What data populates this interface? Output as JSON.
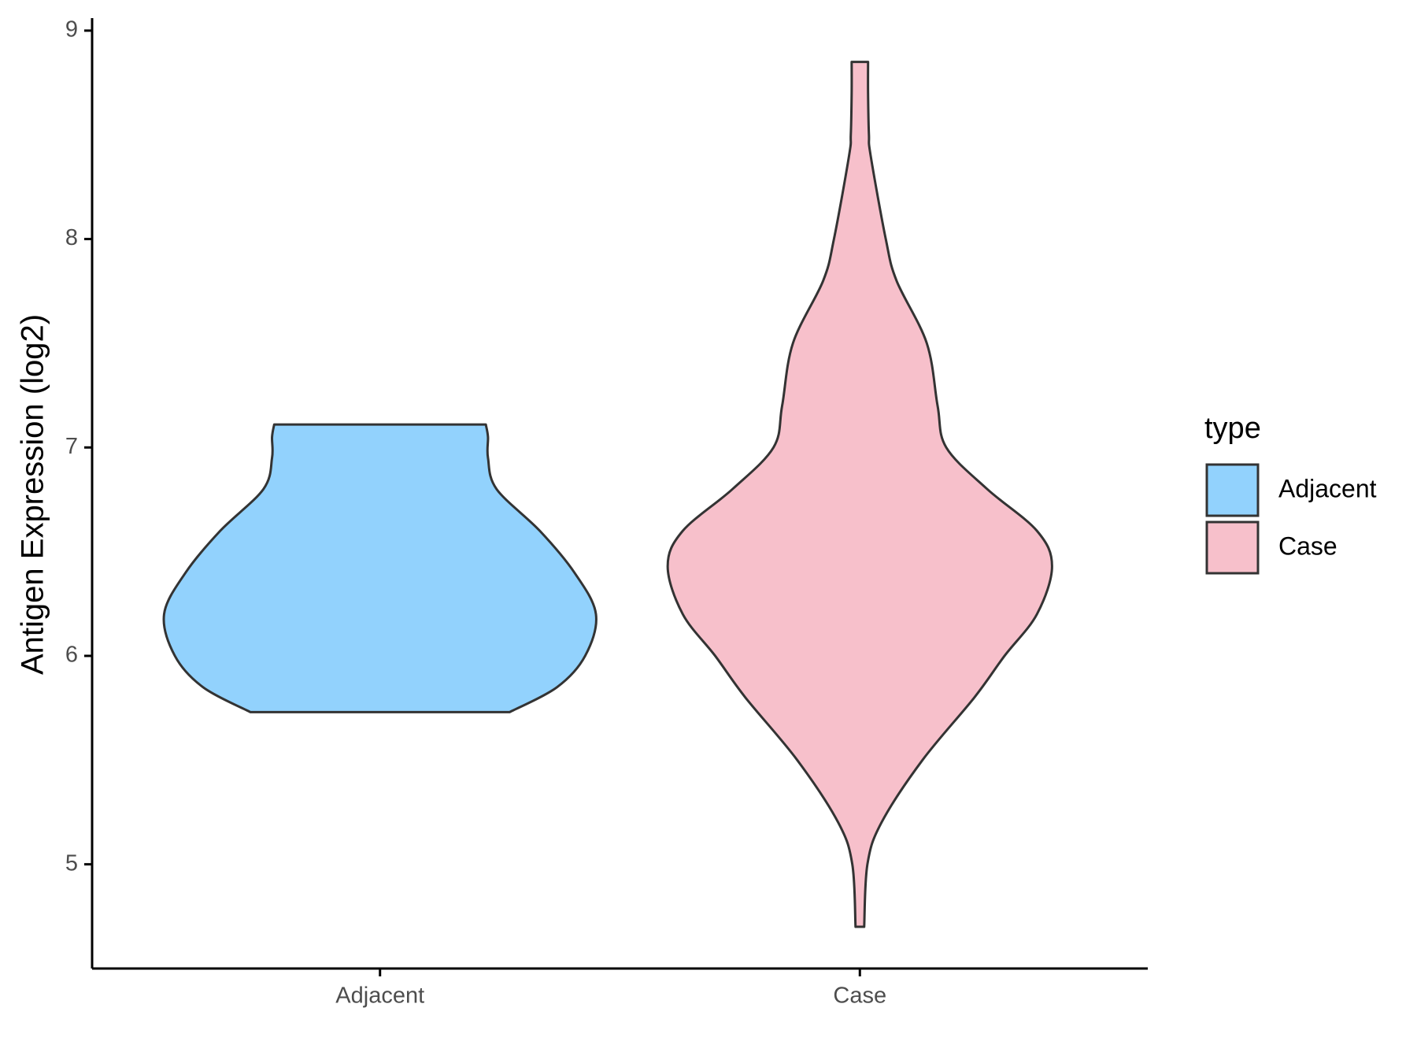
{
  "chart_data": {
    "type": "violin",
    "y_label": "Antigen Expression (log2)",
    "categories": [
      "Adjacent",
      "Case"
    ],
    "legend_title": "type",
    "legend_position": "right",
    "ylim": [
      4.5,
      9.06
    ],
    "yticks": [
      5,
      6,
      7,
      8,
      9
    ],
    "grid": false,
    "series": [
      {
        "name": "Adjacent",
        "color": "#92d2fd",
        "y": [
          5.73,
          5.85,
          6.0,
          6.2,
          6.4,
          6.6,
          6.8,
          6.95,
          7.05,
          7.11
        ],
        "density": [
          0.6,
          0.82,
          0.95,
          1.0,
          0.9,
          0.74,
          0.54,
          0.5,
          0.5,
          0.49
        ]
      },
      {
        "name": "Case",
        "color": "#f7c0cb",
        "y": [
          4.7,
          5.0,
          5.2,
          5.5,
          5.8,
          6.0,
          6.2,
          6.43,
          6.6,
          6.8,
          7.0,
          7.2,
          7.5,
          7.8,
          8.0,
          8.4,
          8.5,
          8.7,
          8.85
        ],
        "density": [
          0.02,
          0.035,
          0.1,
          0.29,
          0.53,
          0.67,
          0.82,
          0.89,
          0.82,
          0.59,
          0.4,
          0.36,
          0.31,
          0.17,
          0.12,
          0.05,
          0.042,
          0.038,
          0.038
        ]
      }
    ]
  }
}
